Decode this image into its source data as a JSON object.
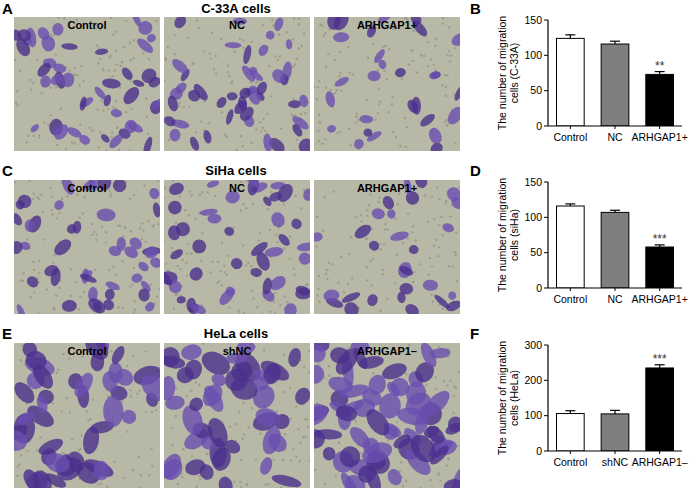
{
  "panels": [
    {
      "label": "A",
      "title": "C-33A cells",
      "images": [
        "Control",
        "NC",
        "ARHGAP1+"
      ]
    },
    {
      "label": "C",
      "title": "SiHa cells",
      "images": [
        "Control",
        "NC",
        "ARHGAP1+"
      ]
    },
    {
      "label": "E",
      "title": "HeLa cells",
      "images": [
        "Control",
        "shNC",
        "ARHGAP1–"
      ]
    }
  ],
  "chart_data": [
    {
      "type": "bar",
      "panel_label": "B",
      "y_label": "The number of migration cells (C-33A)",
      "categories": [
        "Control",
        "NC",
        "ARHGAP1+"
      ],
      "values": [
        124,
        116,
        73
      ],
      "errors": [
        5,
        4,
        4
      ],
      "significance": [
        null,
        null,
        "**"
      ],
      "colors": [
        "#ffffff",
        "#7f7f7f",
        "#000000"
      ],
      "ylim": [
        0,
        150
      ],
      "yticks": [
        0,
        50,
        100,
        150
      ],
      "grid": false
    },
    {
      "type": "bar",
      "panel_label": "D",
      "y_label": "The number of migration cells (siHa)",
      "categories": [
        "Control",
        "NC",
        "ARHGAP1+"
      ],
      "values": [
        116,
        107,
        58
      ],
      "errors": [
        3,
        3,
        3
      ],
      "significance": [
        null,
        null,
        "***"
      ],
      "colors": [
        "#ffffff",
        "#7f7f7f",
        "#000000"
      ],
      "ylim": [
        0,
        150
      ],
      "yticks": [
        0,
        50,
        100,
        150
      ],
      "grid": false
    },
    {
      "type": "bar",
      "panel_label": "F",
      "y_label": "The number of migration cells (HeLa)",
      "categories": [
        "Control",
        "shNC",
        "ARHGAP1–"
      ],
      "values": [
        106,
        105,
        235
      ],
      "errors": [
        8,
        10,
        9
      ],
      "significance": [
        null,
        null,
        "***"
      ],
      "colors": [
        "#ffffff",
        "#7f7f7f",
        "#000000"
      ],
      "ylim": [
        0,
        300
      ],
      "yticks": [
        0,
        100,
        200,
        300
      ],
      "grid": false
    }
  ]
}
